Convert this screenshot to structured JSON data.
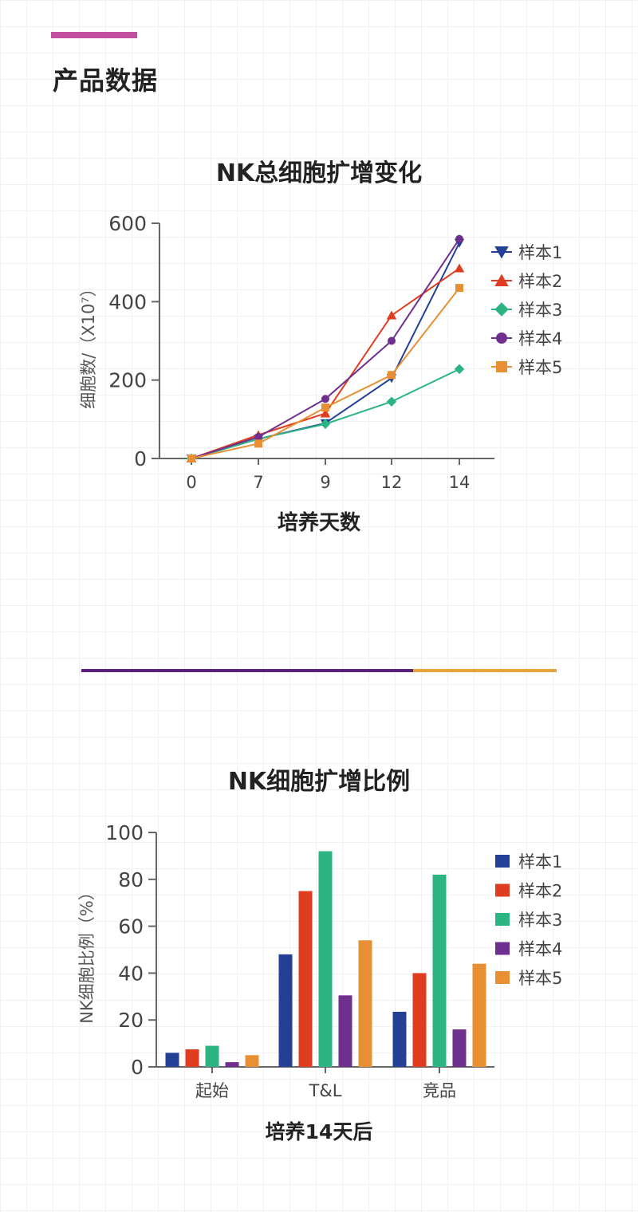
{
  "section": {
    "title": "产品数据",
    "bar_color": "#c24fa0"
  },
  "divider": {
    "left_color": "#5a1d80",
    "right_color": "#e8a43a"
  },
  "series_colors": [
    "#233f96",
    "#e03c1f",
    "#2db483",
    "#6e2f8f",
    "#e88f33"
  ],
  "chart_data": [
    {
      "type": "line",
      "title": "NK总细胞扩增变化",
      "xlabel": "培养天数",
      "ylabel": "细胞数/（X10⁷）",
      "x": [
        "0",
        "7",
        "9",
        "12",
        "14"
      ],
      "ylim": [
        0,
        600
      ],
      "yticks": [
        "0",
        "200",
        "400",
        "600"
      ],
      "legend_position": "right",
      "grid": false,
      "series": [
        {
          "name": "样本1",
          "marker": "triangle-down",
          "values": [
            0,
            50,
            90,
            205,
            550
          ]
        },
        {
          "name": "样本2",
          "marker": "triangle-up",
          "values": [
            0,
            60,
            115,
            365,
            485
          ]
        },
        {
          "name": "样本3",
          "marker": "diamond",
          "values": [
            0,
            50,
            88,
            145,
            228
          ]
        },
        {
          "name": "样本4",
          "marker": "circle",
          "values": [
            0,
            55,
            152,
            300,
            560
          ]
        },
        {
          "name": "样本5",
          "marker": "square",
          "values": [
            0,
            38,
            130,
            213,
            435
          ]
        }
      ]
    },
    {
      "type": "bar",
      "title": "NK细胞扩增比例",
      "xlabel": "培养14天后",
      "ylabel": "NK细胞比例（%）",
      "categories": [
        "起始",
        "T&L",
        "竞品"
      ],
      "ylim": [
        0,
        100
      ],
      "yticks": [
        "0",
        "20",
        "40",
        "60",
        "80",
        "100"
      ],
      "legend_position": "right",
      "grid": false,
      "series": [
        {
          "name": "样本1",
          "values": [
            6,
            48,
            23.5
          ]
        },
        {
          "name": "样本2",
          "values": [
            7.5,
            75,
            40
          ]
        },
        {
          "name": "样本3",
          "values": [
            9,
            92,
            82
          ]
        },
        {
          "name": "样本4",
          "values": [
            2,
            30.5,
            16
          ]
        },
        {
          "name": "样本5",
          "values": [
            5,
            54,
            44
          ]
        }
      ]
    }
  ]
}
